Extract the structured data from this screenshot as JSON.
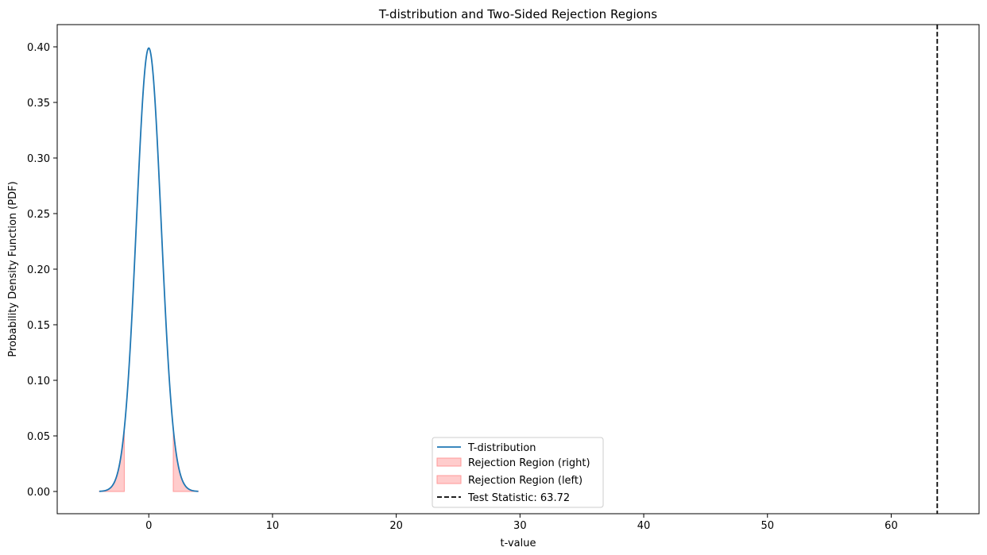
{
  "chart_data": {
    "type": "line",
    "title": "T-distribution and Two-Sided Rejection Regions",
    "xlabel": "t-value",
    "ylabel": "Probability Density Function (PDF)",
    "xlim": [
      -7.4,
      67.1
    ],
    "ylim": [
      -0.02,
      0.42
    ],
    "xticks": [
      0,
      10,
      20,
      30,
      40,
      50,
      60
    ],
    "xtick_labels": [
      "0",
      "10",
      "20",
      "30",
      "40",
      "50",
      "60"
    ],
    "yticks": [
      0.0,
      0.05,
      0.1,
      0.15,
      0.2,
      0.25,
      0.3,
      0.35,
      0.4
    ],
    "ytick_labels": [
      "0.00",
      "0.05",
      "0.10",
      "0.15",
      "0.20",
      "0.25",
      "0.30",
      "0.35",
      "0.40"
    ],
    "grid": false,
    "legend_position": "lower-center",
    "distribution": {
      "name": "T-distribution",
      "color": "#1f77b4",
      "x": [
        -4.0,
        -3.75,
        -3.5,
        -3.25,
        -3.0,
        -2.75,
        -2.5,
        -2.25,
        -2.0,
        -1.75,
        -1.5,
        -1.25,
        -1.0,
        -0.75,
        -0.5,
        -0.25,
        0.0,
        0.25,
        0.5,
        0.75,
        1.0,
        1.25,
        1.5,
        1.75,
        2.0,
        2.25,
        2.5,
        2.75,
        3.0,
        3.25,
        3.5,
        3.75,
        4.0
      ],
      "y": [
        0.0002,
        0.0004,
        0.0009,
        0.002,
        0.0045,
        0.009,
        0.0175,
        0.0317,
        0.054,
        0.0862,
        0.1295,
        0.1826,
        0.2419,
        0.3011,
        0.352,
        0.3867,
        0.3989,
        0.3867,
        0.352,
        0.3011,
        0.2419,
        0.1826,
        0.1295,
        0.0862,
        0.054,
        0.0317,
        0.0175,
        0.009,
        0.0045,
        0.002,
        0.0009,
        0.0004,
        0.0002
      ]
    },
    "rejection_regions": [
      {
        "name": "Rejection Region (right)",
        "from": 1.98,
        "to": 4.0,
        "color": "#ff9999"
      },
      {
        "name": "Rejection Region (left)",
        "from": -4.0,
        "to": -1.98,
        "color": "#ff9999"
      }
    ],
    "test_statistic": {
      "label": "Test Statistic: 63.72",
      "value": 63.72,
      "color": "#000000"
    },
    "legend": [
      {
        "label": "T-distribution",
        "kind": "line",
        "color": "#1f77b4"
      },
      {
        "label": "Rejection Region (right)",
        "kind": "patch",
        "color": "#ff9999"
      },
      {
        "label": "Rejection Region (left)",
        "kind": "patch",
        "color": "#ff9999"
      },
      {
        "label": "Test Statistic: 63.72",
        "kind": "dashed",
        "color": "#000000"
      }
    ]
  }
}
